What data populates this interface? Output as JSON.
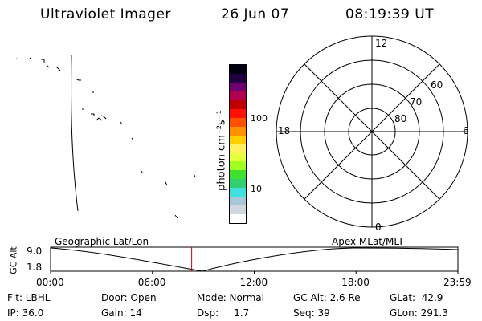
{
  "header": {
    "title": "Ultraviolet Imager",
    "date": "26 Jun 07",
    "time": "08:19:39 UT"
  },
  "colorbar": {
    "unit_label": "photon cm⁻²s⁻¹",
    "tick_high": "100",
    "tick_low": "10",
    "colors": [
      "#ffffff",
      "#cfd8e0",
      "#a8c8d8",
      "#40e0e0",
      "#30d070",
      "#40e030",
      "#a0ff20",
      "#e8ff40",
      "#fff060",
      "#ffd000",
      "#ff9000",
      "#ff5000",
      "#ff1000",
      "#c00000",
      "#b00050",
      "#700070",
      "#200040",
      "#000010"
    ]
  },
  "polar": {
    "mlt_labels": {
      "top": "12",
      "bottom": "0",
      "left": "18",
      "right": "6"
    },
    "mlat_labels": [
      "60",
      "70",
      "80"
    ]
  },
  "timeline": {
    "axis_title": "GC Alt",
    "y_max": "9.0",
    "y_min": "1.8",
    "left_caption": "Geographic Lat/Lon",
    "right_caption": "Apex MLat/MLT",
    "ticks": [
      "00:00",
      "06:00",
      "12:00",
      "18:00",
      "23:59"
    ],
    "current_time_fraction": 0.3464,
    "accent_color": "#cc0000"
  },
  "footer": {
    "flt": "Flt: LBHL",
    "ip": "IP: 36.0",
    "door": "Door: Open",
    "gain": "Gain: 14",
    "mode": "Mode: Normal",
    "dsp": "Dsp:     1.7",
    "gcalt": "GC Alt: 2.6 Re",
    "seq": "Seq: 39",
    "glat": "GLat:  42.9",
    "glon": "GLon: 291.3"
  }
}
